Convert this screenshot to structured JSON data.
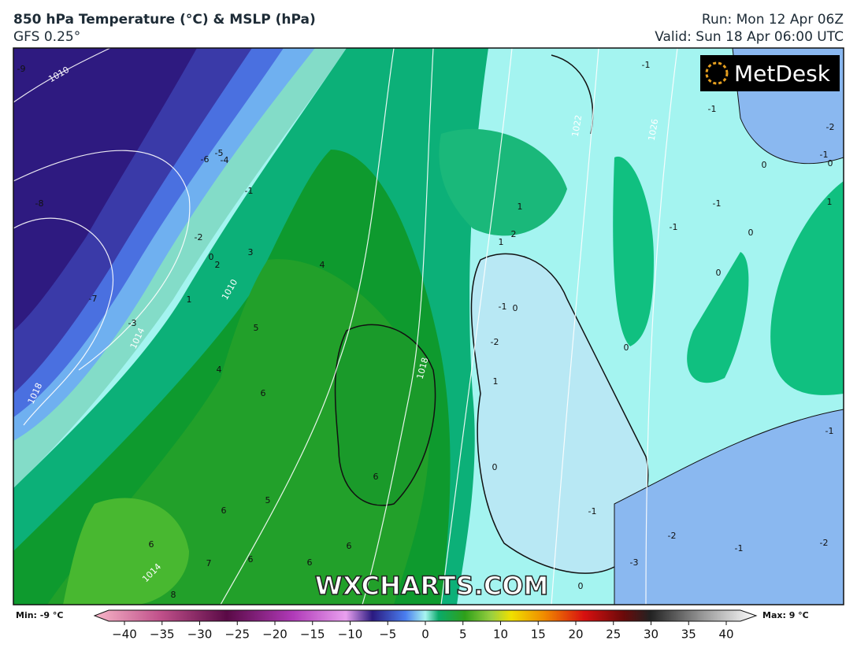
{
  "header": {
    "title": "850 hPa Temperature (°C) & MSLP (hPa)",
    "subtitle": "GFS 0.25°",
    "run": "Run: Mon 12 Apr 06Z",
    "valid": "Valid: Sun 18 Apr 06:00 UTC"
  },
  "logo": "MetDesk",
  "watermark": "WXCHARTS.COM",
  "colorbar": {
    "min_label": "Min: -9 °C",
    "max_label": "Max: 9 °C",
    "ticks": [
      {
        "value": -40,
        "label": "−40"
      },
      {
        "value": -35,
        "label": "−35"
      },
      {
        "value": -30,
        "label": "−30"
      },
      {
        "value": -25,
        "label": "−25"
      },
      {
        "value": -20,
        "label": "−20"
      },
      {
        "value": -15,
        "label": "−15"
      },
      {
        "value": -10,
        "label": "−10"
      },
      {
        "value": -5,
        "label": "−5"
      },
      0,
      5,
      10,
      15,
      20,
      25,
      30,
      35,
      40
    ]
  },
  "isobar_labels": [
    1010,
    1010,
    1014,
    1018,
    1014,
    1018,
    1022,
    1026
  ],
  "temperature_labels": [
    -9,
    -5,
    -6,
    -4,
    -1,
    -8,
    -2,
    0,
    2,
    3,
    4,
    -7,
    1,
    -3,
    5,
    4,
    6,
    6,
    5,
    6,
    6,
    7,
    6,
    6,
    8,
    6,
    1,
    2,
    1,
    -1,
    0,
    -2,
    1,
    0,
    -1,
    -1,
    -2,
    -1,
    0,
    0,
    -1,
    1,
    -1,
    0,
    0,
    0,
    -1,
    -1,
    -2,
    -1,
    -2,
    -3,
    0
  ]
}
